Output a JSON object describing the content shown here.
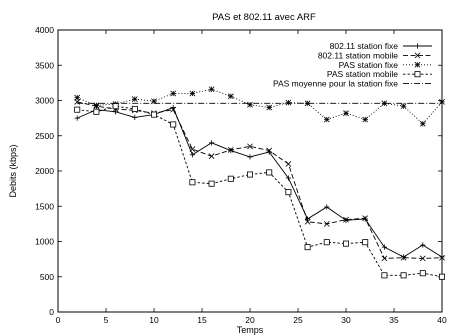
{
  "chart_data": {
    "type": "line",
    "title": "PAS et 802.11 avec ARF",
    "xlabel": "Temps",
    "ylabel": "Debits (kbps)",
    "xlim": [
      0,
      40
    ],
    "ylim": [
      0,
      4000
    ],
    "xticks": [
      0,
      5,
      10,
      15,
      20,
      25,
      30,
      35,
      40
    ],
    "yticks": [
      0,
      500,
      1000,
      1500,
      2000,
      2500,
      3000,
      3500,
      4000
    ],
    "grid": false,
    "legend_position": "top-right",
    "series": [
      {
        "name": "802.11 station fixe",
        "style": "solid",
        "marker": "plus",
        "x": [
          2,
          4,
          6,
          8,
          10,
          12,
          14,
          16,
          18,
          20,
          22,
          24,
          26,
          28,
          30,
          32,
          34,
          36,
          38,
          40
        ],
        "y": [
          2750,
          2870,
          2840,
          2760,
          2800,
          2900,
          2230,
          2400,
          2290,
          2200,
          2270,
          1900,
          1320,
          1490,
          1300,
          1320,
          920,
          780,
          950,
          780
        ]
      },
      {
        "name": "802.11 station mobile",
        "style": "dashed",
        "marker": "x",
        "x": [
          2,
          4,
          6,
          8,
          10,
          12,
          14,
          16,
          18,
          20,
          22,
          24,
          26,
          28,
          30,
          32,
          34,
          36,
          38,
          40
        ],
        "y": [
          2980,
          2920,
          2880,
          2860,
          2820,
          2870,
          2310,
          2210,
          2300,
          2350,
          2290,
          2100,
          1280,
          1250,
          1310,
          1330,
          760,
          770,
          760,
          770
        ]
      },
      {
        "name": "PAS station fixe",
        "style": "dotted",
        "marker": "star",
        "x": [
          2,
          4,
          6,
          8,
          10,
          12,
          14,
          16,
          18,
          20,
          22,
          24,
          26,
          28,
          30,
          32,
          34,
          36,
          38,
          40
        ],
        "y": [
          3040,
          2930,
          2950,
          3020,
          2990,
          3100,
          3100,
          3160,
          3060,
          2940,
          2900,
          2970,
          2960,
          2730,
          2820,
          2730,
          2960,
          2920,
          2670,
          2980
        ]
      },
      {
        "name": "PAS station mobile",
        "style": "short-dashed",
        "marker": "square",
        "x": [
          2,
          4,
          6,
          8,
          10,
          12,
          14,
          16,
          18,
          20,
          22,
          24,
          26,
          28,
          30,
          32,
          34,
          36,
          38,
          40
        ],
        "y": [
          2870,
          2840,
          2920,
          2880,
          2800,
          2660,
          1840,
          1820,
          1890,
          1950,
          1980,
          1700,
          920,
          990,
          970,
          990,
          520,
          520,
          550,
          500
        ]
      },
      {
        "name": "PAS moyenne pour la station fixe",
        "style": "dash-dot",
        "marker": "none",
        "x": [
          2,
          40
        ],
        "y": [
          2960,
          2960
        ]
      }
    ]
  }
}
